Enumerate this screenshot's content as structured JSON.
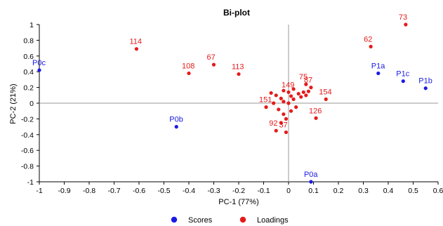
{
  "chart_data": {
    "type": "scatter",
    "title": "Bi-plot",
    "xlabel": "PC-1 (77%)",
    "ylabel": "PC-2 (21%)",
    "xlim": [
      -1,
      0.6
    ],
    "ylim": [
      -1,
      1
    ],
    "x_ticks": [
      -1,
      -0.9,
      -0.8,
      -0.7,
      -0.6,
      -0.5,
      -0.4,
      -0.3,
      -0.2,
      -0.1,
      0,
      0.1,
      0.2,
      0.3,
      0.4,
      0.5,
      0.6
    ],
    "x_tick_labels": [
      "-1",
      "-0.9",
      "-0.8",
      "-0.7",
      "-0.6",
      "-0.5",
      "-0.4",
      "-0.3",
      "-0.2",
      "-0.1",
      "0",
      "0.1",
      "0.2",
      "0.3",
      "0.4",
      "0.5",
      "0.6"
    ],
    "y_ticks": [
      -1,
      -0.8,
      -0.6,
      -0.4,
      -0.2,
      0,
      0.2,
      0.4,
      0.6,
      0.8,
      1
    ],
    "y_tick_labels": [
      "-1",
      "-0.8",
      "-0.6",
      "-0.4",
      "-0.2",
      "0",
      "0.2",
      "0.4",
      "0.6",
      "0.8",
      "1"
    ],
    "grid": false,
    "zero_lines": true,
    "legend_position": "bottom-center",
    "series": [
      {
        "name": "Scores",
        "color": "#1a1ae6",
        "points": [
          {
            "label": "P0c",
            "x": -1.0,
            "y": 0.42
          },
          {
            "label": "P0b",
            "x": -0.45,
            "y": -0.3
          },
          {
            "label": "P0a",
            "x": 0.09,
            "y": -1.0
          },
          {
            "label": "P1a",
            "x": 0.36,
            "y": 0.38
          },
          {
            "label": "P1c",
            "x": 0.46,
            "y": 0.28
          },
          {
            "label": "P1b",
            "x": 0.55,
            "y": 0.19
          }
        ]
      },
      {
        "name": "Loadings",
        "color": "#e61a1a",
        "points": [
          {
            "label": "114",
            "x": -0.61,
            "y": 0.69
          },
          {
            "label": "108",
            "x": -0.4,
            "y": 0.38
          },
          {
            "label": "67",
            "x": -0.3,
            "y": 0.49
          },
          {
            "label": "113",
            "x": -0.2,
            "y": 0.37
          },
          {
            "label": "62",
            "x": 0.33,
            "y": 0.72
          },
          {
            "label": "73",
            "x": 0.47,
            "y": 1.0
          },
          {
            "label": "154",
            "x": 0.15,
            "y": 0.05
          },
          {
            "label": "126",
            "x": 0.11,
            "y": -0.19
          },
          {
            "label": "151",
            "x": -0.09,
            "y": -0.05
          },
          {
            "label": "92",
            "x": -0.05,
            "y": -0.35
          },
          {
            "label": "37",
            "x": -0.01,
            "y": -0.37
          },
          {
            "label": "75",
            "x": 0.07,
            "y": 0.24
          },
          {
            "label": "87",
            "x": 0.09,
            "y": 0.2
          },
          {
            "label": "149",
            "x": 0.0,
            "y": 0.14
          },
          {
            "label": "",
            "x": -0.05,
            "y": 0.1
          },
          {
            "label": "",
            "x": -0.03,
            "y": 0.06
          },
          {
            "label": "",
            "x": -0.02,
            "y": 0.02
          },
          {
            "label": "",
            "x": -0.04,
            "y": -0.08
          },
          {
            "label": "",
            "x": -0.02,
            "y": -0.14
          },
          {
            "label": "",
            "x": 0.01,
            "y": -0.1
          },
          {
            "label": "",
            "x": 0.02,
            "y": 0.05
          },
          {
            "label": "",
            "x": 0.04,
            "y": 0.12
          },
          {
            "label": "",
            "x": 0.05,
            "y": 0.08
          },
          {
            "label": "",
            "x": 0.06,
            "y": 0.14
          },
          {
            "label": "",
            "x": -0.01,
            "y": -0.2
          },
          {
            "label": "",
            "x": -0.03,
            "y": -0.25
          },
          {
            "label": "",
            "x": 0.03,
            "y": -0.05
          },
          {
            "label": "",
            "x": 0.0,
            "y": 0.0
          },
          {
            "label": "",
            "x": 0.08,
            "y": 0.15
          },
          {
            "label": "",
            "x": -0.06,
            "y": 0.0
          },
          {
            "label": "",
            "x": 0.02,
            "y": 0.18
          },
          {
            "label": "",
            "x": -0.02,
            "y": 0.16
          },
          {
            "label": "",
            "x": 0.01,
            "y": 0.09
          },
          {
            "label": "",
            "x": 0.07,
            "y": 0.1
          },
          {
            "label": "",
            "x": -0.07,
            "y": 0.13
          }
        ]
      }
    ]
  }
}
